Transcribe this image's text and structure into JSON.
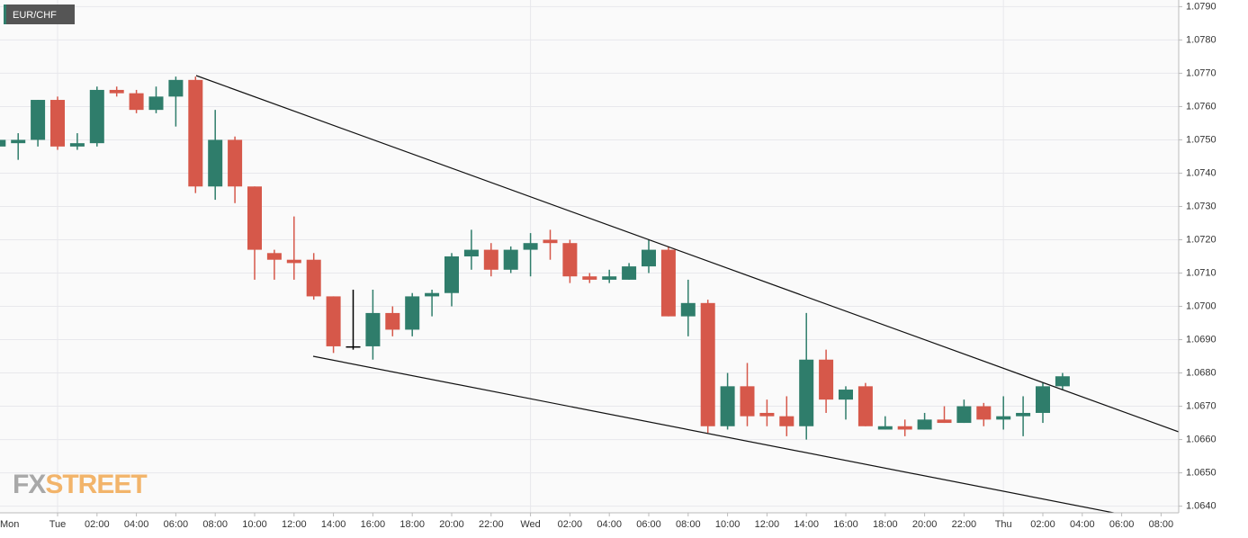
{
  "chart_data": {
    "type": "candlestick",
    "title": "EUR/CHF",
    "watermark": [
      "FX",
      "STREET"
    ],
    "up_color": "#2f7d6b",
    "down_color": "#d6584a",
    "flat_color": "#000000",
    "grid": true,
    "ylim": [
      1.0638,
      1.0792
    ],
    "yticks": [
      {
        "value": 1.064,
        "label": "1.0640"
      },
      {
        "value": 1.065,
        "label": "1.0650"
      },
      {
        "value": 1.066,
        "label": "1.0660"
      },
      {
        "value": 1.067,
        "label": "1.0670"
      },
      {
        "value": 1.068,
        "label": "1.0680"
      },
      {
        "value": 1.069,
        "label": "1.0690"
      },
      {
        "value": 1.07,
        "label": "1.0700"
      },
      {
        "value": 1.071,
        "label": "1.0710"
      },
      {
        "value": 1.072,
        "label": "1.0720"
      },
      {
        "value": 1.073,
        "label": "1.0730"
      },
      {
        "value": 1.074,
        "label": "1.0740"
      },
      {
        "value": 1.075,
        "label": "1.0750"
      },
      {
        "value": 1.076,
        "label": "1.0760"
      },
      {
        "value": 1.077,
        "label": "1.0770"
      },
      {
        "value": 1.078,
        "label": "1.0780"
      },
      {
        "value": 1.079,
        "label": "1.0790"
      }
    ],
    "xticks": [
      "Mon",
      "Tue",
      "02:00",
      "04:00",
      "06:00",
      "08:00",
      "10:00",
      "12:00",
      "14:00",
      "16:00",
      "18:00",
      "20:00",
      "22:00",
      "Wed",
      "02:00",
      "04:00",
      "06:00",
      "08:00",
      "10:00",
      "12:00",
      "14:00",
      "16:00",
      "18:00",
      "20:00",
      "22:00",
      "Thu",
      "02:00",
      "04:00",
      "06:00",
      "08:00"
    ],
    "open": [
      1.0748,
      1.0749,
      1.075,
      1.0762,
      1.0748,
      1.0749,
      1.0765,
      1.0764,
      1.0759,
      1.0763,
      1.0768,
      1.0736,
      1.075,
      1.0736,
      1.0716,
      1.0714,
      1.0714,
      1.0703,
      1.0688,
      1.0688,
      1.0698,
      1.0693,
      1.0703,
      1.0704,
      1.0715,
      1.0717,
      1.0711,
      1.0717,
      1.072,
      1.0719,
      1.0709,
      1.0708,
      1.0708,
      1.0712,
      1.0717,
      1.0697,
      1.0701,
      1.0664,
      1.0676,
      1.0668,
      1.0667,
      1.0664,
      1.0684,
      1.0672,
      1.0676,
      1.0663,
      1.0664,
      1.0663,
      1.0666,
      1.0665,
      1.067,
      1.0666,
      1.0667,
      1.0668,
      1.0676
    ],
    "high": [
      1.0752,
      1.0752,
      1.0762,
      1.0763,
      1.0752,
      1.0766,
      1.0766,
      1.0765,
      1.0766,
      1.0769,
      1.0769,
      1.0759,
      1.0751,
      1.0736,
      1.0717,
      1.0727,
      1.0716,
      1.0703,
      1.0705,
      1.0705,
      1.07,
      1.0704,
      1.0705,
      1.0716,
      1.0723,
      1.0719,
      1.0718,
      1.0722,
      1.0723,
      1.072,
      1.071,
      1.0711,
      1.0713,
      1.072,
      1.0718,
      1.0708,
      1.0702,
      1.068,
      1.0683,
      1.0672,
      1.0673,
      1.0698,
      1.0687,
      1.0676,
      1.0677,
      1.0667,
      1.0666,
      1.0668,
      1.067,
      1.0672,
      1.0671,
      1.0673,
      1.0673,
      1.0677,
      1.068
    ],
    "low": [
      1.0744,
      1.0744,
      1.0748,
      1.0747,
      1.0747,
      1.0748,
      1.0763,
      1.0758,
      1.0758,
      1.0754,
      1.0734,
      1.0732,
      1.0731,
      1.0708,
      1.0708,
      1.0708,
      1.0702,
      1.0686,
      1.0687,
      1.0684,
      1.0691,
      1.0691,
      1.0697,
      1.07,
      1.0711,
      1.0709,
      1.071,
      1.0709,
      1.0714,
      1.0707,
      1.0707,
      1.0707,
      1.0708,
      1.071,
      1.0697,
      1.0691,
      1.0662,
      1.0663,
      1.0664,
      1.0664,
      1.0661,
      1.066,
      1.0668,
      1.0666,
      1.0664,
      1.0663,
      1.0661,
      1.0663,
      1.0665,
      1.0665,
      1.0664,
      1.0663,
      1.0661,
      1.0665,
      1.0675
    ],
    "close": [
      1.075,
      1.075,
      1.0762,
      1.0748,
      1.0749,
      1.0765,
      1.0764,
      1.0759,
      1.0763,
      1.0768,
      1.0736,
      1.075,
      1.0736,
      1.0717,
      1.0714,
      1.0713,
      1.0703,
      1.0688,
      1.0688,
      1.0698,
      1.0693,
      1.0703,
      1.0704,
      1.0715,
      1.0717,
      1.0711,
      1.0717,
      1.0719,
      1.0719,
      1.0709,
      1.0708,
      1.0709,
      1.0712,
      1.0717,
      1.0697,
      1.0701,
      1.0664,
      1.0676,
      1.0667,
      1.0667,
      1.0664,
      1.0684,
      1.0672,
      1.0675,
      1.0664,
      1.0664,
      1.0663,
      1.0666,
      1.0665,
      1.067,
      1.0666,
      1.0667,
      1.0668,
      1.0676,
      1.0679
    ]
  }
}
